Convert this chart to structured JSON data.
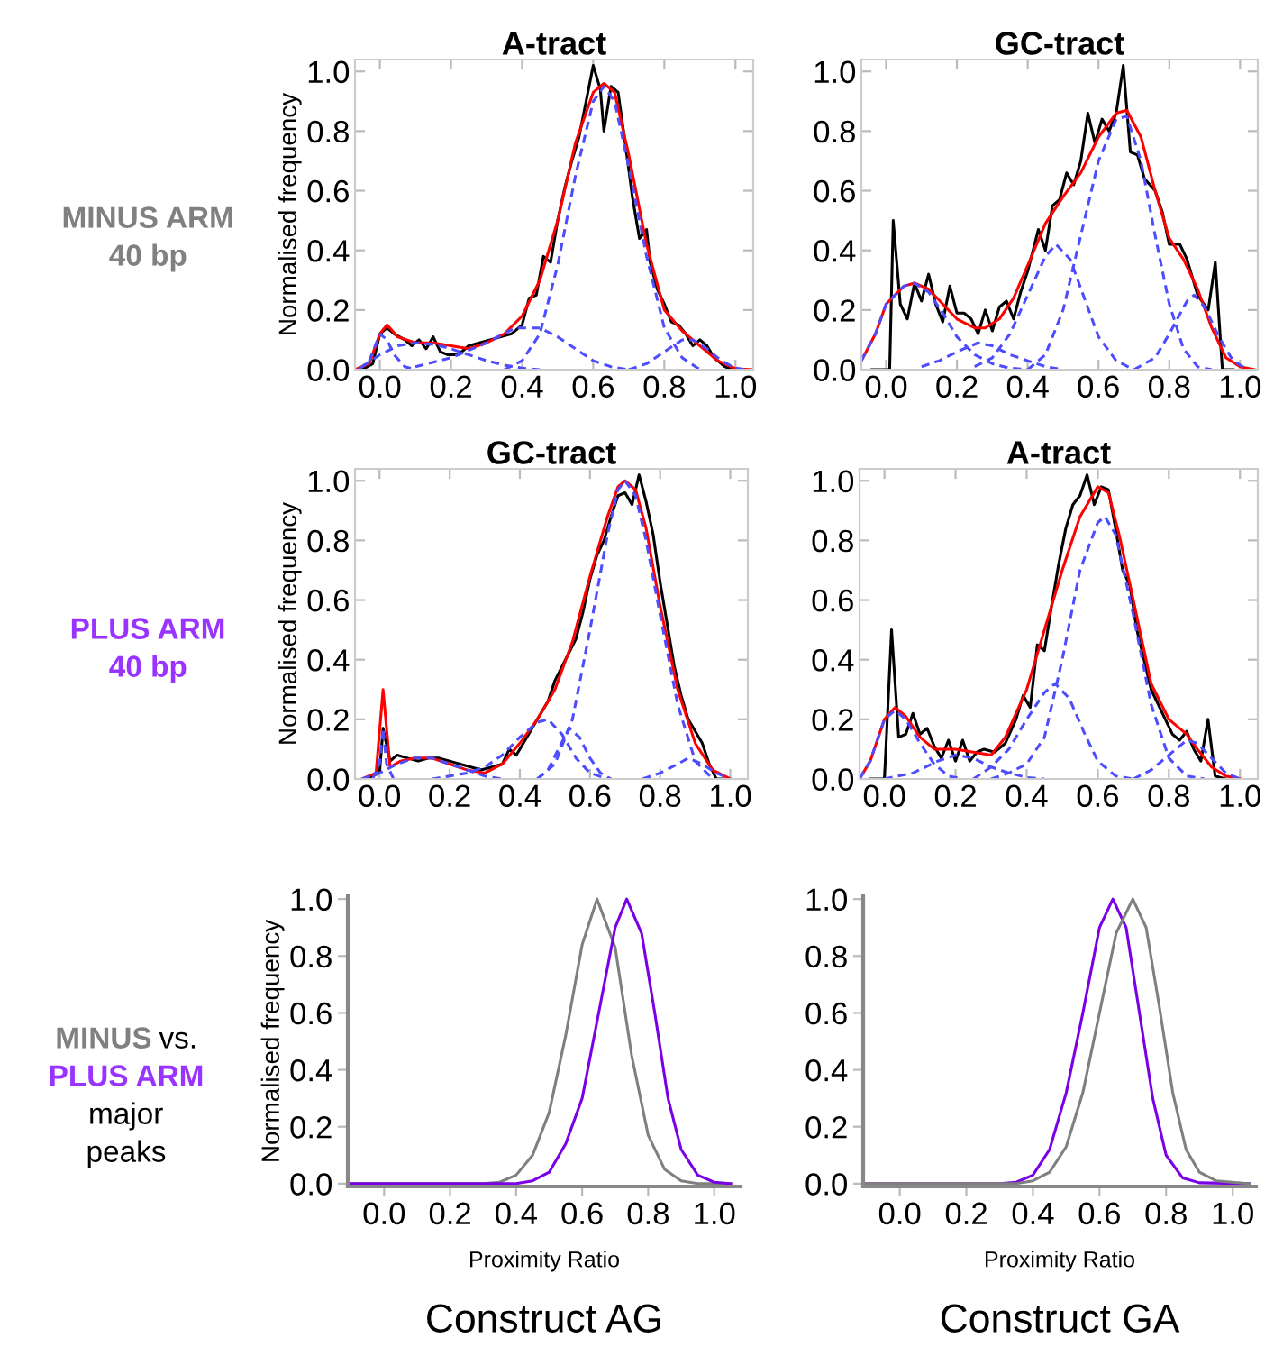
{
  "chart_data": [
    {
      "type": "line",
      "title": "A-tract",
      "ylabel": "Normalised frequency",
      "xlim": [
        -0.07,
        1.05
      ],
      "ylim": [
        0,
        1.04
      ],
      "xticks": [
        {
          "value": 0,
          "label": "0.0"
        },
        {
          "value": 0.2,
          "label": "0.2"
        },
        {
          "value": 0.4,
          "label": "0.4"
        },
        {
          "value": 0.6,
          "label": "0.6"
        },
        {
          "value": 0.8,
          "label": "0.8"
        },
        {
          "value": 1,
          "label": "1.0"
        }
      ],
      "yticks": [
        {
          "value": 0,
          "label": "0.0"
        },
        {
          "value": 0.2,
          "label": "0.2"
        },
        {
          "value": 0.4,
          "label": "0.4"
        },
        {
          "value": 0.6,
          "label": "0.6"
        },
        {
          "value": 0.8,
          "label": "0.8"
        },
        {
          "value": 1,
          "label": "1.0"
        }
      ],
      "annotations": [
        "MINUS ARM",
        "40 bp"
      ],
      "series": [
        {
          "color": "#000000",
          "line_style": "solid",
          "x": [
            -0.05,
            -0.02,
            0.0,
            0.02,
            0.04,
            0.07,
            0.09,
            0.11,
            0.13,
            0.15,
            0.17,
            0.19,
            0.22,
            0.25,
            0.28,
            0.31,
            0.34,
            0.37,
            0.4,
            0.42,
            0.44,
            0.46,
            0.48,
            0.5,
            0.52,
            0.54,
            0.56,
            0.58,
            0.6,
            0.62,
            0.63,
            0.65,
            0.67,
            0.69,
            0.71,
            0.73,
            0.75,
            0.76,
            0.78,
            0.8,
            0.82,
            0.84,
            0.86,
            0.88,
            0.9,
            0.92,
            0.94,
            0.97,
            0.99
          ],
          "values": [
            0,
            0.02,
            0.12,
            0.14,
            0.12,
            0.1,
            0.08,
            0.1,
            0.07,
            0.11,
            0.06,
            0.05,
            0.05,
            0.08,
            0.09,
            0.1,
            0.11,
            0.12,
            0.15,
            0.24,
            0.25,
            0.38,
            0.36,
            0.5,
            0.61,
            0.7,
            0.78,
            0.9,
            1.02,
            0.94,
            0.8,
            0.95,
            0.93,
            0.76,
            0.58,
            0.44,
            0.47,
            0.36,
            0.27,
            0.22,
            0.16,
            0.15,
            0.12,
            0.08,
            0.1,
            0.08,
            0.04,
            0.01,
            0
          ]
        },
        {
          "color": "#ff0000",
          "line_style": "solid",
          "x": [
            -0.07,
            -0.03,
            0.0,
            0.02,
            0.05,
            0.1,
            0.15,
            0.2,
            0.25,
            0.3,
            0.35,
            0.4,
            0.45,
            0.5,
            0.55,
            0.6,
            0.63,
            0.66,
            0.7,
            0.75,
            0.8,
            0.85,
            0.9,
            0.95,
            1.0,
            1.05
          ],
          "values": [
            0,
            0.02,
            0.12,
            0.15,
            0.11,
            0.09,
            0.09,
            0.08,
            0.07,
            0.09,
            0.12,
            0.18,
            0.3,
            0.5,
            0.76,
            0.93,
            0.96,
            0.93,
            0.72,
            0.42,
            0.2,
            0.13,
            0.08,
            0.03,
            0.003,
            0
          ]
        },
        {
          "color": "#4d4dff",
          "line_style": "dashed",
          "x": [
            -0.06,
            -0.03,
            0,
            0.02,
            0.04,
            0.07,
            0.1
          ],
          "values": [
            0,
            0.03,
            0.12,
            0.1,
            0.05,
            0.01,
            0
          ]
        },
        {
          "color": "#4d4dff",
          "line_style": "dashed",
          "x": [
            -0.05,
            0.0,
            0.05,
            0.1,
            0.15,
            0.2,
            0.25,
            0.3,
            0.35,
            0.4,
            0.45
          ],
          "values": [
            0.01,
            0.05,
            0.08,
            0.09,
            0.085,
            0.07,
            0.05,
            0.03,
            0.015,
            0.005,
            0
          ]
        },
        {
          "color": "#4d4dff",
          "line_style": "dashed",
          "x": [
            0.1,
            0.2,
            0.3,
            0.38,
            0.45,
            0.5,
            0.55,
            0.6,
            0.65,
            0.7
          ],
          "values": [
            0.01,
            0.04,
            0.09,
            0.14,
            0.14,
            0.11,
            0.07,
            0.03,
            0.01,
            0
          ]
        },
        {
          "color": "#4d4dff",
          "line_style": "dashed",
          "x": [
            0.35,
            0.4,
            0.45,
            0.5,
            0.55,
            0.6,
            0.63,
            0.66,
            0.7,
            0.75,
            0.8,
            0.85,
            0.9
          ],
          "values": [
            0,
            0.03,
            0.12,
            0.35,
            0.65,
            0.9,
            0.95,
            0.9,
            0.68,
            0.38,
            0.14,
            0.04,
            0
          ]
        },
        {
          "color": "#4d4dff",
          "line_style": "dashed",
          "x": [
            0.7,
            0.75,
            0.8,
            0.85,
            0.88,
            0.92,
            0.96,
            1.0,
            1.03
          ],
          "values": [
            0,
            0.02,
            0.06,
            0.1,
            0.1,
            0.07,
            0.03,
            0.005,
            0
          ]
        }
      ]
    },
    {
      "type": "line",
      "title": "GC-tract",
      "xlim": [
        -0.07,
        1.05
      ],
      "ylim": [
        0,
        1.04
      ],
      "xticks": [
        {
          "value": 0,
          "label": "0.0"
        },
        {
          "value": 0.2,
          "label": "0.2"
        },
        {
          "value": 0.4,
          "label": "0.4"
        },
        {
          "value": 0.6,
          "label": "0.6"
        },
        {
          "value": 0.8,
          "label": "0.8"
        },
        {
          "value": 1,
          "label": "1.0"
        }
      ],
      "yticks": [
        {
          "value": 0,
          "label": "0.0"
        },
        {
          "value": 0.2,
          "label": "0.2"
        },
        {
          "value": 0.4,
          "label": "0.4"
        },
        {
          "value": 0.6,
          "label": "0.6"
        },
        {
          "value": 0.8,
          "label": "0.8"
        },
        {
          "value": 1,
          "label": "1.0"
        }
      ],
      "series": [
        {
          "color": "#000000",
          "line_style": "solid",
          "x": [
            -0.04,
            0.01,
            0.02,
            0.04,
            0.06,
            0.08,
            0.1,
            0.12,
            0.14,
            0.16,
            0.18,
            0.2,
            0.22,
            0.24,
            0.26,
            0.28,
            0.3,
            0.32,
            0.34,
            0.36,
            0.38,
            0.4,
            0.43,
            0.45,
            0.47,
            0.49,
            0.51,
            0.53,
            0.55,
            0.57,
            0.59,
            0.61,
            0.63,
            0.65,
            0.67,
            0.69,
            0.71,
            0.73,
            0.76,
            0.78,
            0.8,
            0.83,
            0.85,
            0.88,
            0.91,
            0.93,
            0.95,
            0.98
          ],
          "values": [
            0,
            0,
            0.5,
            0.22,
            0.17,
            0.29,
            0.23,
            0.32,
            0.22,
            0.16,
            0.28,
            0.19,
            0.19,
            0.17,
            0.12,
            0.2,
            0.13,
            0.21,
            0.23,
            0.17,
            0.26,
            0.33,
            0.47,
            0.4,
            0.55,
            0.57,
            0.66,
            0.62,
            0.7,
            0.86,
            0.76,
            0.84,
            0.8,
            0.86,
            1.02,
            0.73,
            0.72,
            0.64,
            0.6,
            0.53,
            0.42,
            0.42,
            0.37,
            0.25,
            0.2,
            0.36,
            0.0,
            0
          ]
        },
        {
          "color": "#ff0000",
          "line_style": "solid",
          "x": [
            -0.07,
            -0.03,
            0.0,
            0.05,
            0.08,
            0.12,
            0.16,
            0.2,
            0.25,
            0.28,
            0.32,
            0.36,
            0.4,
            0.45,
            0.5,
            0.55,
            0.6,
            0.65,
            0.68,
            0.72,
            0.76,
            0.8,
            0.84,
            0.88,
            0.92,
            0.96,
            1.0,
            1.04
          ],
          "values": [
            0.03,
            0.12,
            0.22,
            0.28,
            0.29,
            0.27,
            0.22,
            0.17,
            0.14,
            0.14,
            0.17,
            0.24,
            0.35,
            0.49,
            0.58,
            0.66,
            0.78,
            0.86,
            0.87,
            0.78,
            0.6,
            0.44,
            0.37,
            0.27,
            0.14,
            0.04,
            0.01,
            0
          ]
        },
        {
          "color": "#4d4dff",
          "line_style": "dashed",
          "x": [
            -0.07,
            -0.03,
            0.0,
            0.05,
            0.08,
            0.12,
            0.16,
            0.2,
            0.25,
            0.3,
            0.35,
            0.4
          ],
          "values": [
            0.03,
            0.12,
            0.22,
            0.28,
            0.29,
            0.26,
            0.19,
            0.11,
            0.05,
            0.02,
            0.005,
            0
          ]
        },
        {
          "color": "#4d4dff",
          "line_style": "dashed",
          "x": [
            0.1,
            0.15,
            0.2,
            0.26,
            0.3,
            0.35,
            0.4,
            0.45,
            0.5
          ],
          "values": [
            0.01,
            0.03,
            0.06,
            0.09,
            0.08,
            0.05,
            0.03,
            0.01,
            0
          ]
        },
        {
          "color": "#4d4dff",
          "line_style": "dashed",
          "x": [
            0.25,
            0.3,
            0.35,
            0.4,
            0.45,
            0.48,
            0.52,
            0.56,
            0.6,
            0.65,
            0.7
          ],
          "values": [
            0.01,
            0.04,
            0.12,
            0.25,
            0.38,
            0.42,
            0.37,
            0.24,
            0.11,
            0.03,
            0
          ]
        },
        {
          "color": "#4d4dff",
          "line_style": "dashed",
          "x": [
            0.4,
            0.45,
            0.5,
            0.55,
            0.6,
            0.65,
            0.68,
            0.72,
            0.76,
            0.8,
            0.84,
            0.88,
            0.92
          ],
          "values": [
            0,
            0.05,
            0.2,
            0.45,
            0.7,
            0.84,
            0.85,
            0.7,
            0.45,
            0.22,
            0.07,
            0.01,
            0
          ]
        },
        {
          "color": "#4d4dff",
          "line_style": "dashed",
          "x": [
            0.7,
            0.76,
            0.8,
            0.85,
            0.87,
            0.9,
            0.94,
            0.98,
            1.02
          ],
          "values": [
            0,
            0.04,
            0.12,
            0.23,
            0.25,
            0.21,
            0.11,
            0.03,
            0
          ]
        }
      ]
    },
    {
      "type": "line",
      "title": "GC-tract",
      "ylabel": "Normalised frequency",
      "xlim": [
        -0.07,
        1.05
      ],
      "ylim": [
        0,
        1.04
      ],
      "xticks": [
        {
          "value": 0,
          "label": "0.0"
        },
        {
          "value": 0.2,
          "label": "0.2"
        },
        {
          "value": 0.4,
          "label": "0.4"
        },
        {
          "value": 0.6,
          "label": "0.6"
        },
        {
          "value": 0.8,
          "label": "0.8"
        },
        {
          "value": 1,
          "label": "1.0"
        }
      ],
      "yticks": [
        {
          "value": 0,
          "label": "0.0"
        },
        {
          "value": 0.2,
          "label": "0.2"
        },
        {
          "value": 0.4,
          "label": "0.4"
        },
        {
          "value": 0.6,
          "label": "0.6"
        },
        {
          "value": 0.8,
          "label": "0.8"
        },
        {
          "value": 1,
          "label": "1.0"
        }
      ],
      "annotations": [
        "PLUS ARM",
        "40 bp"
      ],
      "series": [
        {
          "color": "#000000",
          "line_style": "solid",
          "x": [
            -0.04,
            0.0,
            0.01,
            0.03,
            0.05,
            0.08,
            0.11,
            0.14,
            0.17,
            0.2,
            0.23,
            0.26,
            0.29,
            0.32,
            0.35,
            0.37,
            0.39,
            0.42,
            0.45,
            0.48,
            0.5,
            0.53,
            0.56,
            0.58,
            0.6,
            0.62,
            0.64,
            0.66,
            0.68,
            0.7,
            0.72,
            0.74,
            0.76,
            0.78,
            0.8,
            0.82,
            0.84,
            0.86,
            0.88,
            0.9,
            0.92,
            0.94,
            0.96,
            0.98
          ],
          "values": [
            0,
            0.02,
            0.17,
            0.06,
            0.08,
            0.07,
            0.06,
            0.07,
            0.07,
            0.06,
            0.05,
            0.04,
            0.03,
            0.04,
            0.05,
            0.1,
            0.08,
            0.14,
            0.2,
            0.26,
            0.33,
            0.4,
            0.47,
            0.56,
            0.67,
            0.75,
            0.8,
            0.88,
            0.95,
            0.96,
            0.92,
            1.02,
            0.93,
            0.82,
            0.66,
            0.52,
            0.38,
            0.28,
            0.2,
            0.16,
            0.12,
            0.05,
            0.0,
            0
          ]
        },
        {
          "color": "#ff0000",
          "line_style": "solid",
          "x": [
            -0.05,
            -0.01,
            0.01,
            0.03,
            0.06,
            0.1,
            0.15,
            0.2,
            0.25,
            0.3,
            0.35,
            0.4,
            0.45,
            0.5,
            0.55,
            0.6,
            0.65,
            0.68,
            0.7,
            0.73,
            0.76,
            0.8,
            0.85,
            0.9,
            0.95,
            1.0
          ],
          "values": [
            0,
            0.02,
            0.3,
            0.04,
            0.06,
            0.07,
            0.07,
            0.05,
            0.03,
            0.02,
            0.05,
            0.12,
            0.2,
            0.3,
            0.46,
            0.68,
            0.88,
            0.98,
            1.0,
            0.97,
            0.84,
            0.58,
            0.3,
            0.12,
            0.03,
            0
          ]
        },
        {
          "color": "#4d4dff",
          "line_style": "dashed",
          "x": [
            -0.02,
            0.0,
            0.01,
            0.02,
            0.04
          ],
          "values": [
            0,
            0.05,
            0.17,
            0.05,
            0
          ]
        },
        {
          "color": "#4d4dff",
          "line_style": "dashed",
          "x": [
            -0.05,
            0.0,
            0.05,
            0.1,
            0.15,
            0.2,
            0.25,
            0.3,
            0.35
          ],
          "values": [
            0,
            0.02,
            0.05,
            0.07,
            0.07,
            0.05,
            0.03,
            0.01,
            0
          ]
        },
        {
          "color": "#4d4dff",
          "line_style": "dashed",
          "x": [
            0.15,
            0.25,
            0.3,
            0.35,
            0.4,
            0.45,
            0.48,
            0.52,
            0.56,
            0.6,
            0.65
          ],
          "values": [
            0,
            0.02,
            0.04,
            0.08,
            0.14,
            0.19,
            0.2,
            0.15,
            0.07,
            0.02,
            0
          ]
        },
        {
          "color": "#4d4dff",
          "line_style": "dashed",
          "x": [
            0.45,
            0.48,
            0.51,
            0.54,
            0.57,
            0.6,
            0.63,
            0.66
          ],
          "values": [
            0,
            0.03,
            0.1,
            0.17,
            0.14,
            0.07,
            0.02,
            0
          ]
        },
        {
          "color": "#4d4dff",
          "line_style": "dashed",
          "x": [
            0.45,
            0.5,
            0.55,
            0.6,
            0.65,
            0.68,
            0.7,
            0.73,
            0.76,
            0.8,
            0.85,
            0.9,
            0.95
          ],
          "values": [
            0,
            0.05,
            0.2,
            0.5,
            0.82,
            0.97,
            1.0,
            0.95,
            0.8,
            0.55,
            0.25,
            0.06,
            0
          ]
        },
        {
          "color": "#4d4dff",
          "line_style": "dashed",
          "x": [
            0.75,
            0.8,
            0.85,
            0.88,
            0.92,
            0.96,
            1.0
          ],
          "values": [
            0,
            0.02,
            0.05,
            0.07,
            0.05,
            0.02,
            0
          ]
        }
      ]
    },
    {
      "type": "line",
      "title": "A-tract",
      "xlim": [
        -0.07,
        1.05
      ],
      "ylim": [
        0,
        1.04
      ],
      "xticks": [
        {
          "value": 0,
          "label": "0.0"
        },
        {
          "value": 0.2,
          "label": "0.2"
        },
        {
          "value": 0.4,
          "label": "0.4"
        },
        {
          "value": 0.6,
          "label": "0.6"
        },
        {
          "value": 0.8,
          "label": "0.8"
        },
        {
          "value": 1,
          "label": "1.0"
        }
      ],
      "yticks": [
        {
          "value": 0,
          "label": "0.0"
        },
        {
          "value": 0.2,
          "label": "0.2"
        },
        {
          "value": 0.4,
          "label": "0.4"
        },
        {
          "value": 0.6,
          "label": "0.6"
        },
        {
          "value": 0.8,
          "label": "0.8"
        },
        {
          "value": 1,
          "label": "1.0"
        }
      ],
      "series": [
        {
          "color": "#000000",
          "line_style": "solid",
          "x": [
            -0.04,
            0.0,
            0.02,
            0.04,
            0.06,
            0.08,
            0.1,
            0.12,
            0.14,
            0.16,
            0.18,
            0.2,
            0.22,
            0.24,
            0.26,
            0.28,
            0.31,
            0.34,
            0.37,
            0.39,
            0.41,
            0.43,
            0.45,
            0.47,
            0.49,
            0.51,
            0.53,
            0.55,
            0.57,
            0.59,
            0.61,
            0.63,
            0.65,
            0.67,
            0.69,
            0.71,
            0.73,
            0.75,
            0.77,
            0.79,
            0.81,
            0.83,
            0.85,
            0.87,
            0.89,
            0.91,
            0.93,
            0.96
          ],
          "values": [
            0,
            0,
            0.5,
            0.14,
            0.15,
            0.22,
            0.15,
            0.17,
            0.11,
            0.07,
            0.13,
            0.06,
            0.13,
            0.06,
            0.09,
            0.1,
            0.09,
            0.12,
            0.2,
            0.28,
            0.24,
            0.45,
            0.43,
            0.58,
            0.72,
            0.84,
            0.92,
            0.95,
            1.02,
            0.92,
            0.98,
            0.97,
            0.84,
            0.7,
            0.65,
            0.5,
            0.4,
            0.3,
            0.25,
            0.2,
            0.15,
            0.13,
            0.16,
            0.1,
            0.06,
            0.2,
            0.01,
            0
          ]
        },
        {
          "color": "#ff0000",
          "line_style": "solid",
          "x": [
            -0.07,
            -0.04,
            0.0,
            0.03,
            0.06,
            0.1,
            0.14,
            0.2,
            0.25,
            0.3,
            0.34,
            0.4,
            0.45,
            0.5,
            0.55,
            0.6,
            0.63,
            0.66,
            0.7,
            0.75,
            0.8,
            0.85,
            0.88,
            0.92,
            0.96,
            1.0
          ],
          "values": [
            0,
            0.06,
            0.2,
            0.24,
            0.21,
            0.14,
            0.1,
            0.1,
            0.09,
            0.08,
            0.14,
            0.3,
            0.5,
            0.7,
            0.88,
            0.98,
            0.96,
            0.82,
            0.6,
            0.32,
            0.2,
            0.15,
            0.1,
            0.04,
            0.01,
            0
          ]
        },
        {
          "color": "#4d4dff",
          "line_style": "dashed",
          "x": [
            -0.07,
            -0.04,
            0.0,
            0.03,
            0.06,
            0.1,
            0.14,
            0.18,
            0.22
          ],
          "values": [
            0,
            0.06,
            0.2,
            0.23,
            0.2,
            0.12,
            0.05,
            0.01,
            0
          ]
        },
        {
          "color": "#4d4dff",
          "line_style": "dashed",
          "x": [
            0.0,
            0.08,
            0.15,
            0.2,
            0.25,
            0.3,
            0.35,
            0.4,
            0.45
          ],
          "values": [
            0,
            0.02,
            0.06,
            0.08,
            0.07,
            0.04,
            0.02,
            0.005,
            0
          ]
        },
        {
          "color": "#4d4dff",
          "line_style": "dashed",
          "x": [
            0.25,
            0.3,
            0.35,
            0.4,
            0.45,
            0.48,
            0.52,
            0.56,
            0.6,
            0.65,
            0.7
          ],
          "values": [
            0,
            0.04,
            0.1,
            0.2,
            0.29,
            0.32,
            0.27,
            0.16,
            0.06,
            0.01,
            0
          ]
        },
        {
          "color": "#4d4dff",
          "line_style": "dashed",
          "x": [
            0.3,
            0.35,
            0.4,
            0.45,
            0.5,
            0.55,
            0.6,
            0.62,
            0.65,
            0.7,
            0.75,
            0.8,
            0.85,
            0.9
          ],
          "values": [
            0,
            0.02,
            0.05,
            0.14,
            0.4,
            0.7,
            0.86,
            0.88,
            0.82,
            0.55,
            0.25,
            0.07,
            0.01,
            0
          ]
        },
        {
          "color": "#4d4dff",
          "line_style": "dashed",
          "x": [
            0.7,
            0.75,
            0.8,
            0.85,
            0.88,
            0.92,
            0.96,
            1.0
          ],
          "values": [
            0,
            0.03,
            0.08,
            0.13,
            0.12,
            0.07,
            0.02,
            0
          ]
        }
      ]
    },
    {
      "type": "line",
      "ylabel": "Normalised frequency",
      "xlabel": "Proximity Ratio",
      "xlim": [
        -0.11,
        1.08
      ],
      "ylim": [
        -0.01,
        1.01
      ],
      "xticks": [
        {
          "value": 0,
          "label": "0.0"
        },
        {
          "value": 0.2,
          "label": "0.2"
        },
        {
          "value": 0.4,
          "label": "0.4"
        },
        {
          "value": 0.6,
          "label": "0.6"
        },
        {
          "value": 0.8,
          "label": "0.8"
        },
        {
          "value": 1,
          "label": "1.0"
        }
      ],
      "yticks": [
        {
          "value": 0,
          "label": "0.0"
        },
        {
          "value": 0.2,
          "label": "0.2"
        },
        {
          "value": 0.4,
          "label": "0.4"
        },
        {
          "value": 0.6,
          "label": "0.6"
        },
        {
          "value": 0.8,
          "label": "0.8"
        },
        {
          "value": 1,
          "label": "1.0"
        }
      ],
      "annotations": [
        "MINUS",
        "vs.",
        "PLUS ARM",
        "major",
        "peaks",
        "Construct AG"
      ],
      "series": [
        {
          "color": "#7f7f7f",
          "line_style": "solid",
          "x": [
            -0.1,
            0.3,
            0.35,
            0.4,
            0.45,
            0.5,
            0.55,
            0.6,
            0.645,
            0.7,
            0.75,
            0.8,
            0.85,
            0.9,
            0.95,
            1.05
          ],
          "values": [
            0,
            0,
            0.005,
            0.03,
            0.1,
            0.25,
            0.52,
            0.84,
            1.0,
            0.83,
            0.45,
            0.17,
            0.05,
            0.01,
            0,
            0
          ]
        },
        {
          "color": "#7a00e6",
          "line_style": "solid",
          "x": [
            -0.1,
            0.4,
            0.45,
            0.5,
            0.55,
            0.6,
            0.65,
            0.7,
            0.735,
            0.78,
            0.82,
            0.86,
            0.9,
            0.95,
            1.0,
            1.05
          ],
          "values": [
            0,
            0,
            0.01,
            0.04,
            0.14,
            0.3,
            0.6,
            0.9,
            1.0,
            0.88,
            0.6,
            0.3,
            0.12,
            0.03,
            0.005,
            0
          ]
        }
      ]
    },
    {
      "type": "line",
      "xlabel": "Proximity Ratio",
      "xlim": [
        -0.11,
        1.07
      ],
      "ylim": [
        -0.01,
        1.01
      ],
      "xticks": [
        {
          "value": 0,
          "label": "0.0"
        },
        {
          "value": 0.2,
          "label": "0.2"
        },
        {
          "value": 0.4,
          "label": "0.4"
        },
        {
          "value": 0.6,
          "label": "0.6"
        },
        {
          "value": 0.8,
          "label": "0.8"
        },
        {
          "value": 1,
          "label": "1.0"
        }
      ],
      "yticks": [
        {
          "value": 0,
          "label": "0.0"
        },
        {
          "value": 0.2,
          "label": "0.2"
        },
        {
          "value": 0.4,
          "label": "0.4"
        },
        {
          "value": 0.6,
          "label": "0.6"
        },
        {
          "value": 0.8,
          "label": "0.8"
        },
        {
          "value": 1,
          "label": "1.0"
        }
      ],
      "annotations": [
        "Construct GA"
      ],
      "series": [
        {
          "color": "#7a00e6",
          "line_style": "solid",
          "x": [
            -0.1,
            0.3,
            0.35,
            0.4,
            0.45,
            0.5,
            0.55,
            0.6,
            0.64,
            0.68,
            0.72,
            0.76,
            0.8,
            0.85,
            0.9,
            1.05
          ],
          "values": [
            0,
            0,
            0.005,
            0.03,
            0.12,
            0.32,
            0.6,
            0.9,
            1.0,
            0.9,
            0.6,
            0.3,
            0.1,
            0.02,
            0.003,
            0
          ]
        },
        {
          "color": "#7f7f7f",
          "line_style": "solid",
          "x": [
            -0.1,
            0.35,
            0.4,
            0.45,
            0.5,
            0.55,
            0.6,
            0.65,
            0.7,
            0.74,
            0.78,
            0.82,
            0.86,
            0.9,
            0.95,
            1.05
          ],
          "values": [
            0,
            0,
            0.01,
            0.04,
            0.13,
            0.32,
            0.6,
            0.88,
            1.0,
            0.9,
            0.62,
            0.32,
            0.12,
            0.04,
            0.01,
            0
          ]
        }
      ]
    }
  ]
}
